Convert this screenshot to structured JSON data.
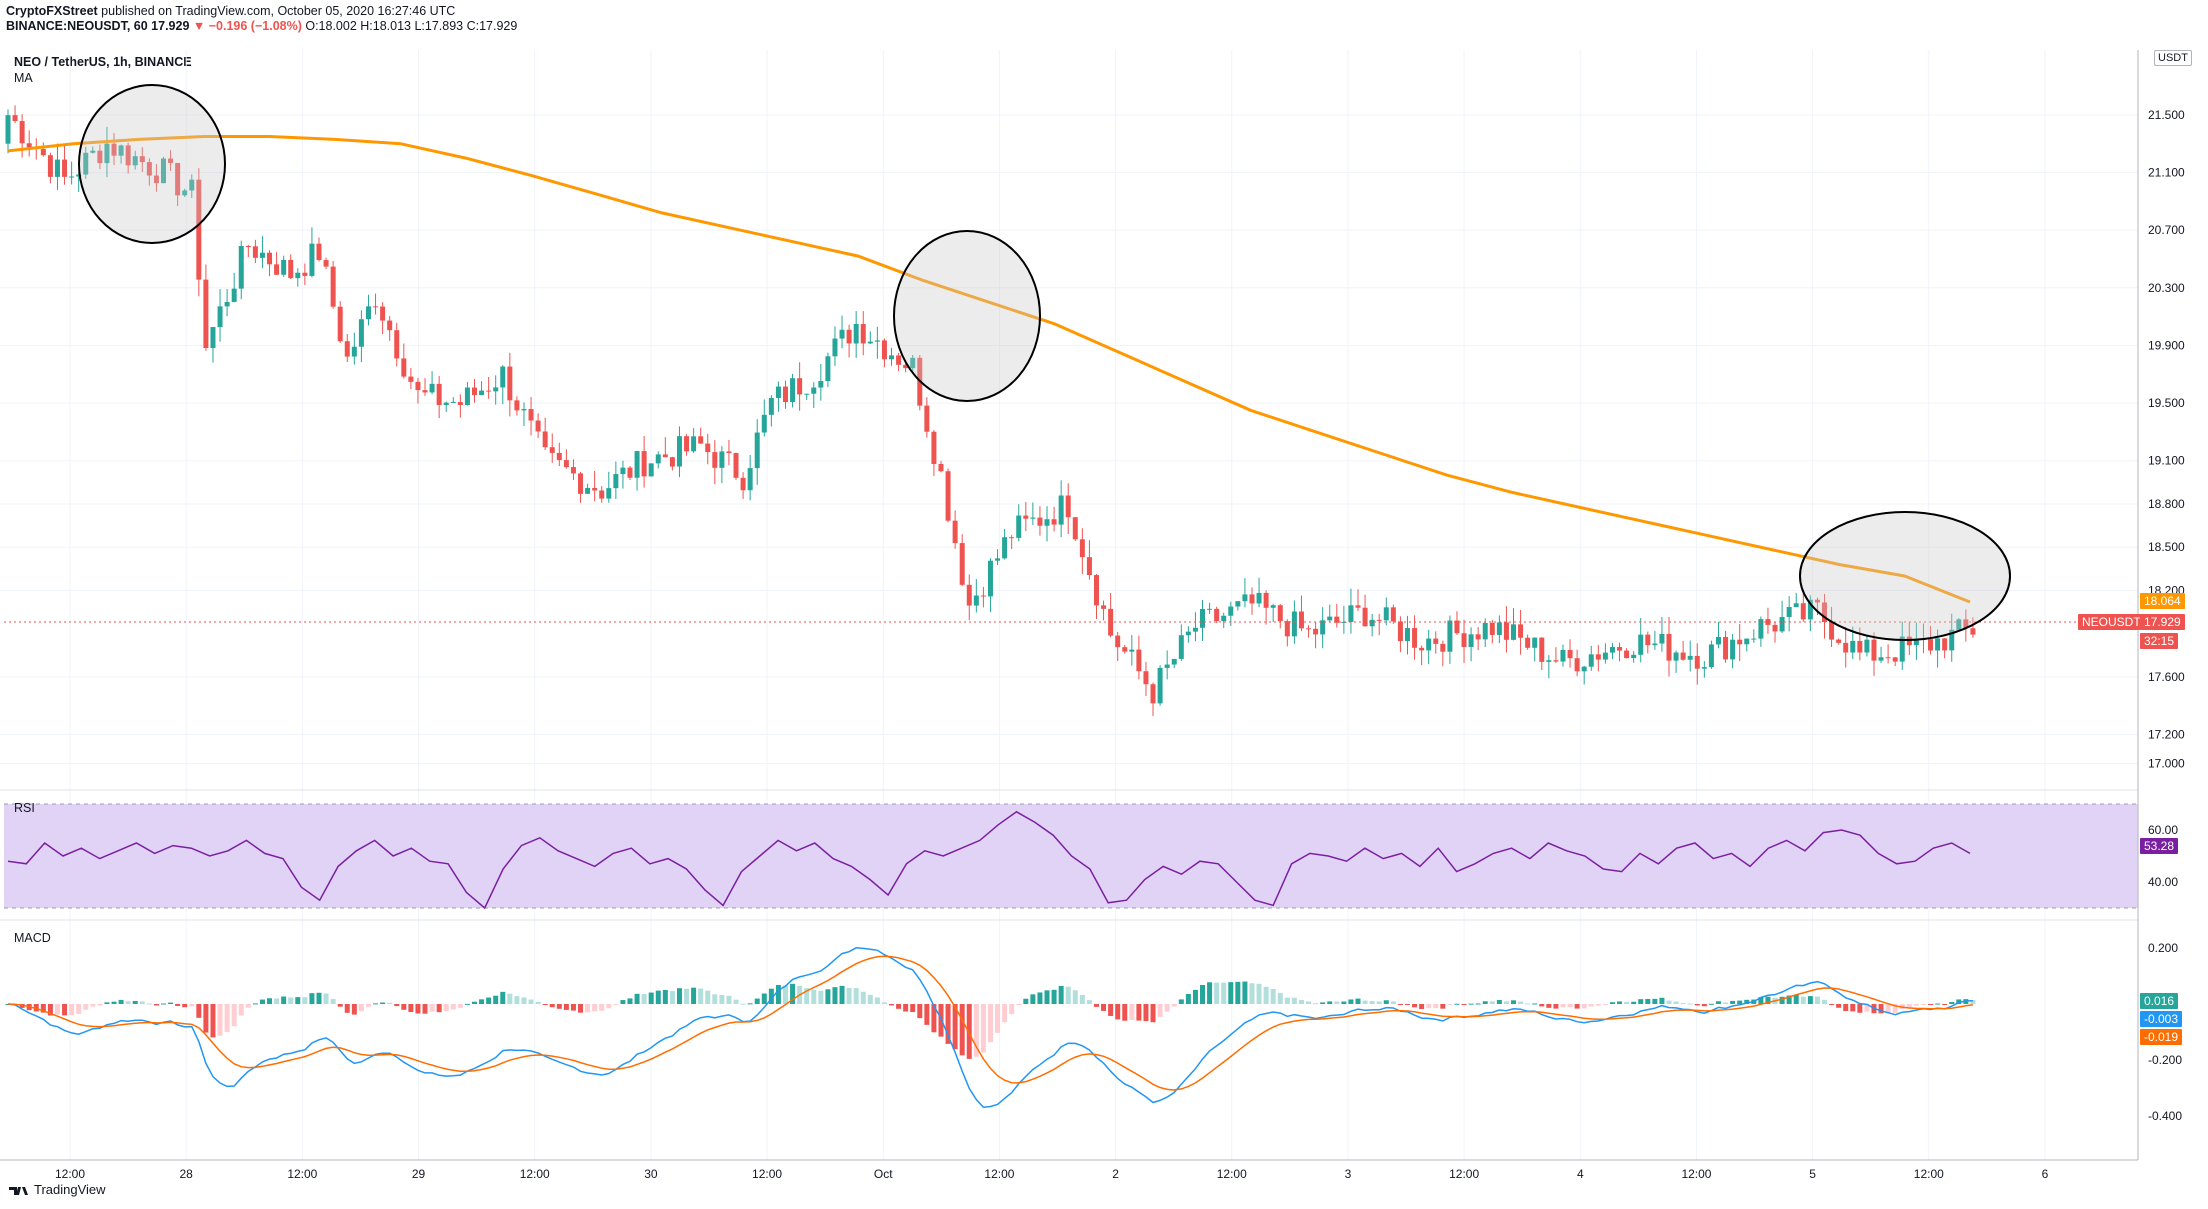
{
  "header": {
    "publisher": "CryptoFXStreet",
    "published_text": "published on TradingView.com, October 05, 2020 16:27:46 UTC",
    "symbol_line": "BINANCE:NEOUSDT, 60",
    "last": "17.929",
    "change": "−0.196 (−1.08%)",
    "ohlc": "O:18.002  H:18.013  L:17.893  C:17.929"
  },
  "legend": {
    "symbol": "NEO / TetherUS, 1h, BINANCE",
    "indicator": "MA",
    "currency": "USDT"
  },
  "panes": {
    "rsi_label": "RSI",
    "macd_label": "MACD"
  },
  "footer": {
    "brand": "TradingView"
  },
  "colors": {
    "up": "#26a69a",
    "down": "#ef5350",
    "ma": "#ff9800",
    "rsi": "#7b1fa2",
    "rsi_band": "#e1d3f5",
    "macd": "#2196f3",
    "signal": "#ff6d00",
    "hist_up_strong": "#26a69a",
    "hist_up_weak": "#b2dfdb",
    "hist_down_strong": "#ef5350",
    "hist_down_weak": "#ffcdd2"
  },
  "chart_data": [
    {
      "type": "candlestick",
      "title": "NEO / TetherUS, 1h, BINANCE",
      "y_ticks": [
        "21.500",
        "21.100",
        "20.700",
        "20.300",
        "19.900",
        "19.500",
        "19.100",
        "18.800",
        "18.500",
        "18.200",
        "17.600",
        "17.200",
        "17.000"
      ],
      "x_ticks": [
        "12:00",
        "28",
        "12:00",
        "29",
        "12:00",
        "30",
        "12:00",
        "Oct",
        "12:00",
        "2",
        "12:00",
        "3",
        "12:00",
        "4",
        "12:00",
        "5",
        "12:00",
        "6"
      ],
      "ylim": [
        16.85,
        21.95
      ],
      "ma_series": {
        "name": "MA",
        "values": [
          21.25,
          21.3,
          21.33,
          21.35,
          21.35,
          21.33,
          21.3,
          21.2,
          21.08,
          20.95,
          20.82,
          20.72,
          20.62,
          20.52,
          20.35,
          20.2,
          20.05,
          19.85,
          19.65,
          19.45,
          19.3,
          19.15,
          19.0,
          18.88,
          18.78,
          18.68,
          18.58,
          18.48,
          18.38,
          18.3,
          18.12
        ]
      },
      "price_labels": {
        "ma": "18.064",
        "symbol": "NEOUSDT",
        "last": "17.929",
        "countdown": "32:15"
      },
      "annotations": [
        "circle around late Sep 27 highs",
        "circle around Oct 1 highs",
        "circle around Oct 5 MA touch"
      ]
    },
    {
      "type": "line",
      "title": "RSI",
      "y_ticks": [
        "60.00",
        "40.00"
      ],
      "band": [
        30,
        70
      ],
      "last_value": "53.28",
      "values": [
        48,
        47,
        55,
        50,
        53,
        49,
        52,
        55,
        51,
        54,
        53,
        50,
        52,
        56,
        51,
        49,
        38,
        33,
        46,
        52,
        56,
        50,
        53,
        48,
        47,
        36,
        30,
        45,
        54,
        57,
        52,
        49,
        46,
        51,
        53,
        47,
        49,
        45,
        37,
        31,
        44,
        50,
        56,
        52,
        55,
        49,
        46,
        41,
        35,
        47,
        52,
        50,
        53,
        56,
        62,
        67,
        63,
        58,
        50,
        45,
        32,
        33,
        41,
        46,
        43,
        48,
        47,
        40,
        33,
        31,
        47,
        51,
        50,
        48,
        53,
        49,
        51,
        46,
        53,
        44,
        47,
        51,
        53,
        49,
        55,
        52,
        50,
        45,
        44,
        51,
        47,
        53,
        55,
        49,
        51,
        46,
        53,
        56,
        52,
        59,
        60,
        58,
        51,
        47,
        48,
        53,
        55,
        51
      ]
    },
    {
      "type": "bar+line",
      "title": "MACD",
      "y_ticks": [
        "0.200",
        "-0.200",
        "-0.400"
      ],
      "last_values": {
        "histogram": "0.016",
        "macd": "-0.003",
        "signal": "-0.019"
      }
    }
  ]
}
